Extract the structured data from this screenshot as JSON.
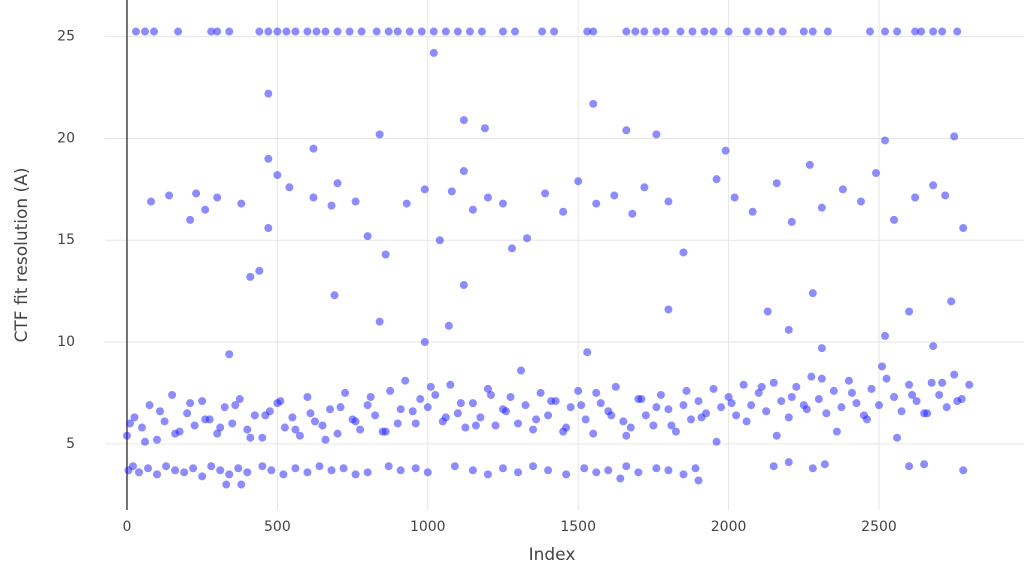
{
  "chart_data": {
    "type": "scatter",
    "xlabel": "Index",
    "ylabel": "CTF fit resolution (A)",
    "color": "#1a1aff",
    "grid": true,
    "xlim": [
      -73,
      2982
    ],
    "ylim": [
      1.75,
      26.8
    ],
    "xticks": [
      0,
      500,
      1000,
      1500,
      2000,
      2500
    ],
    "yticks": [
      5,
      10,
      15,
      20,
      25
    ],
    "x": [
      30,
      60,
      90,
      170,
      280,
      300,
      340,
      440,
      470,
      500,
      530,
      560,
      600,
      630,
      660,
      700,
      740,
      780,
      830,
      870,
      900,
      940,
      980,
      1020,
      1060,
      1100,
      1140,
      1180,
      1250,
      1290,
      1380,
      1420,
      1530,
      1550,
      1660,
      1690,
      1720,
      1760,
      1790,
      1840,
      1880,
      1920,
      1950,
      2000,
      2060,
      2100,
      2140,
      2180,
      2250,
      2280,
      2330,
      2470,
      2520,
      2560,
      2620,
      2640,
      2680,
      2710,
      2760,
      5,
      20,
      40,
      70,
      100,
      130,
      160,
      190,
      220,
      250,
      280,
      310,
      340,
      370,
      400,
      450,
      480,
      520,
      560,
      600,
      640,
      680,
      720,
      760,
      800,
      870,
      910,
      960,
      1000,
      1090,
      1150,
      1200,
      1250,
      1300,
      1350,
      1400,
      1460,
      1520,
      1560,
      1600,
      1660,
      1700,
      1760,
      1800,
      1850,
      1890,
      2150,
      2200,
      2280,
      2320,
      2600,
      2650,
      2780,
      0,
      25,
      50,
      75,
      100,
      125,
      150,
      175,
      200,
      225,
      250,
      275,
      300,
      325,
      350,
      375,
      400,
      425,
      450,
      475,
      500,
      525,
      550,
      575,
      600,
      625,
      650,
      675,
      700,
      725,
      750,
      775,
      800,
      825,
      850,
      875,
      900,
      925,
      950,
      975,
      1000,
      1025,
      1050,
      1075,
      1100,
      1125,
      1150,
      1175,
      1200,
      1225,
      1250,
      1275,
      1300,
      1325,
      1350,
      1375,
      1400,
      1425,
      1450,
      1475,
      1500,
      1525,
      1550,
      1575,
      1600,
      1625,
      1650,
      1675,
      1700,
      1725,
      1750,
      1775,
      1800,
      1825,
      1850,
      1875,
      1900,
      1925,
      1950,
      1975,
      2000,
      2025,
      2050,
      2075,
      2100,
      2125,
      2150,
      2175,
      2200,
      2225,
      2250,
      2275,
      2300,
      2325,
      2350,
      2375,
      2400,
      2425,
      2450,
      2475,
      2500,
      2525,
      2550,
      2575,
      2600,
      2625,
      2650,
      2675,
      2700,
      2725,
      2750,
      2775,
      2800,
      10,
      60,
      110,
      160,
      210,
      260,
      310,
      360,
      410,
      460,
      510,
      560,
      610,
      660,
      710,
      760,
      810,
      860,
      910,
      960,
      1010,
      1060,
      1110,
      1160,
      1210,
      1260,
      1310,
      1360,
      1410,
      1460,
      1510,
      1560,
      1610,
      1660,
      1710,
      1760,
      1810,
      1860,
      1910,
      1960,
      2010,
      2060,
      2110,
      2160,
      2210,
      2260,
      2310,
      2360,
      2410,
      2460,
      2510,
      2560,
      2610,
      2660,
      2710,
      2760,
      80,
      140,
      210,
      230,
      260,
      300,
      380,
      470,
      500,
      540,
      620,
      680,
      700,
      760,
      800,
      860,
      930,
      990,
      1040,
      1080,
      1120,
      1150,
      1200,
      1250,
      1280,
      1330,
      1390,
      1450,
      1500,
      1560,
      1620,
      1680,
      1720,
      1800,
      1850,
      1960,
      2020,
      2080,
      2160,
      2210,
      2270,
      2310,
      2380,
      2440,
      2490,
      2550,
      2620,
      2680,
      2720,
      2780,
      1020,
      470,
      1550,
      1120,
      840,
      1190,
      1660,
      1760,
      1990,
      2520,
      2750,
      620,
      470,
      410,
      440,
      1120,
      690,
      840,
      1800,
      1070,
      2130,
      2200,
      2280,
      2520,
      2600,
      2740,
      340,
      990,
      1530,
      2310,
      2680,
      1900,
      330,
      380,
      1640
    ],
    "values": [
      25.25,
      25.25,
      25.25,
      25.25,
      25.25,
      25.25,
      25.25,
      25.25,
      25.25,
      25.25,
      25.25,
      25.25,
      25.25,
      25.25,
      25.25,
      25.25,
      25.25,
      25.25,
      25.25,
      25.25,
      25.25,
      25.25,
      25.25,
      25.25,
      25.25,
      25.25,
      25.25,
      25.25,
      25.25,
      25.25,
      25.25,
      25.25,
      25.25,
      25.25,
      25.25,
      25.25,
      25.25,
      25.25,
      25.25,
      25.25,
      25.25,
      25.25,
      25.25,
      25.25,
      25.25,
      25.25,
      25.25,
      25.25,
      25.25,
      25.25,
      25.25,
      25.25,
      25.25,
      25.25,
      25.25,
      25.25,
      25.25,
      25.25,
      25.25,
      3.7,
      3.9,
      3.6,
      3.8,
      3.5,
      3.9,
      3.7,
      3.6,
      3.8,
      3.4,
      3.9,
      3.7,
      3.5,
      3.8,
      3.6,
      3.9,
      3.7,
      3.5,
      3.8,
      3.6,
      3.9,
      3.7,
      3.8,
      3.5,
      3.6,
      3.9,
      3.7,
      3.8,
      3.6,
      3.9,
      3.7,
      3.5,
      3.8,
      3.6,
      3.9,
      3.7,
      3.5,
      3.8,
      3.6,
      3.7,
      3.9,
      3.6,
      3.8,
      3.7,
      3.5,
      3.8,
      3.9,
      4.1,
      3.8,
      4.0,
      3.9,
      4.0,
      3.7,
      5.4,
      6.3,
      5.8,
      6.9,
      5.2,
      6.1,
      7.4,
      5.6,
      6.5,
      5.9,
      7.1,
      6.2,
      5.5,
      6.8,
      6.0,
      7.2,
      5.7,
      6.4,
      5.3,
      6.6,
      7.0,
      5.8,
      6.3,
      5.4,
      7.3,
      6.1,
      5.9,
      6.7,
      5.5,
      7.5,
      6.2,
      5.7,
      6.9,
      6.4,
      5.6,
      7.6,
      6.0,
      8.1,
      6.6,
      7.2,
      6.8,
      7.4,
      6.1,
      7.9,
      6.5,
      5.8,
      7.0,
      6.3,
      7.7,
      5.9,
      6.7,
      7.3,
      6.0,
      6.9,
      5.7,
      7.5,
      6.4,
      7.1,
      5.6,
      6.8,
      7.6,
      6.2,
      5.5,
      7.0,
      6.6,
      7.8,
      6.1,
      5.8,
      7.2,
      6.4,
      5.9,
      7.4,
      6.7,
      5.6,
      6.9,
      6.2,
      7.1,
      6.5,
      7.7,
      6.8,
      7.3,
      6.4,
      7.9,
      6.9,
      7.5,
      6.6,
      8.0,
      7.1,
      6.3,
      7.8,
      6.9,
      8.3,
      7.2,
      6.5,
      7.6,
      6.8,
      8.1,
      7.0,
      6.4,
      7.7,
      6.9,
      8.2,
      7.3,
      6.6,
      7.9,
      7.1,
      6.5,
      8.0,
      7.4,
      6.8,
      8.4,
      7.2,
      7.9,
      6.0,
      5.1,
      6.6,
      5.5,
      7.0,
      6.2,
      5.8,
      6.9,
      5.3,
      6.4,
      7.1,
      5.7,
      6.5,
      5.2,
      6.8,
      6.1,
      7.3,
      5.6,
      6.7,
      6.0,
      7.8,
      6.3,
      7.0,
      5.9,
      7.4,
      6.6,
      8.6,
      6.2,
      7.1,
      5.8,
      6.9,
      7.5,
      6.4,
      5.4,
      7.2,
      6.8,
      5.9,
      7.6,
      6.3,
      5.1,
      7.0,
      6.1,
      7.8,
      5.4,
      7.3,
      6.7,
      8.2,
      5.6,
      7.5,
      6.2,
      8.8,
      5.3,
      7.4,
      6.5,
      8.0,
      7.1,
      16.9,
      17.2,
      16.0,
      17.3,
      16.5,
      17.1,
      16.8,
      15.6,
      18.2,
      17.6,
      17.1,
      16.7,
      17.8,
      16.9,
      15.2,
      14.3,
      16.8,
      17.5,
      15.0,
      17.4,
      18.4,
      16.5,
      17.1,
      16.8,
      14.6,
      15.1,
      17.3,
      16.4,
      17.9,
      16.8,
      17.2,
      16.3,
      17.6,
      16.9,
      14.4,
      18.0,
      17.1,
      16.4,
      17.8,
      15.9,
      18.7,
      16.6,
      17.5,
      16.9,
      18.3,
      16.0,
      17.1,
      17.7,
      17.2,
      15.6,
      24.2,
      22.2,
      21.7,
      20.9,
      20.2,
      20.5,
      20.4,
      20.2,
      19.4,
      19.9,
      20.1,
      19.5,
      19.0,
      13.2,
      13.5,
      12.8,
      12.3,
      11.0,
      11.6,
      10.8,
      11.5,
      10.6,
      12.4,
      10.3,
      11.5,
      12.0,
      9.4,
      10.0,
      9.5,
      9.7,
      9.8,
      3.2,
      3.0,
      3.0,
      3.3
    ]
  }
}
